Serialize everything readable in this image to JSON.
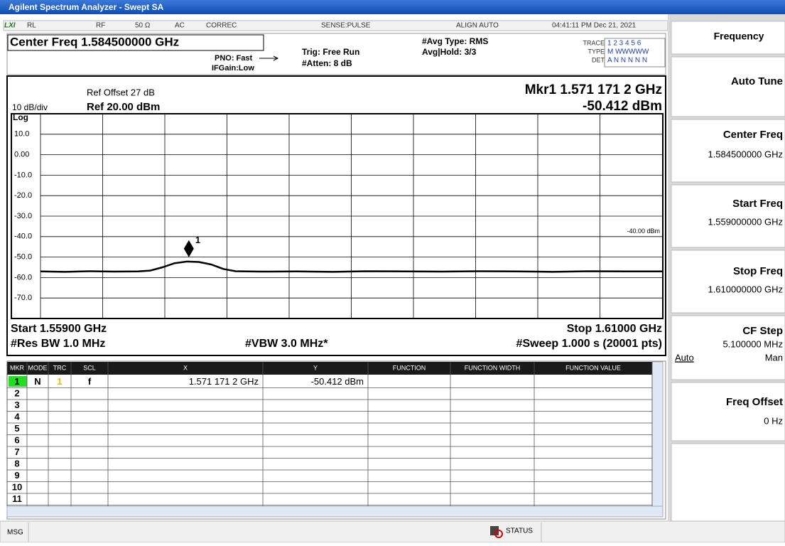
{
  "title_bar": "Agilent Spectrum Analyzer - Swept SA",
  "status_row": {
    "lxi": "LXI",
    "rl": "RL",
    "rf": "RF",
    "impedance": "50 Ω",
    "coupling": "AC",
    "correc": "CORREC",
    "sense": "SENSE:PULSE",
    "align": "ALIGN AUTO",
    "time": "04:41:11 PM Dec 21, 2021"
  },
  "header": {
    "center_freq": "Center Freq 1.584500000 GHz",
    "pno": "PNO: Fast",
    "ifgain": "IFGain:Low",
    "trig": "Trig: Free Run",
    "atten": "#Atten: 8 dB",
    "avg_type": "#Avg Type: RMS",
    "avg_hold": "Avg|Hold: 3/3",
    "trace_label": "TRACE",
    "trace_value": "1 2 3 4 5 6",
    "type_label": "TYPE",
    "type_value": "M WWWWW",
    "det_label": "DET",
    "det_value": "A N N N N N"
  },
  "display": {
    "ref_offset": "Ref Offset 27 dB",
    "scale": "10 dB/div",
    "ref_level": "Ref 20.00 dBm",
    "log": "Log",
    "marker_freq": "Mkr1 1.571 171 2 GHz",
    "marker_level": "-50.412 dBm",
    "start": "Start 1.55900 GHz",
    "stop": "Stop 1.61000 GHz",
    "rbw": "#Res BW 1.0 MHz",
    "vbw": "#VBW 3.0 MHz*",
    "sweep": "#Sweep  1.000 s (20001 pts)"
  },
  "chart_data": {
    "type": "line",
    "color": "#000000",
    "xlim": [
      1.559,
      1.61
    ],
    "ylim": [
      -80,
      20
    ],
    "yticks": [
      {
        "value": 10,
        "label": "10.0"
      },
      {
        "value": 0,
        "label": "0.00"
      },
      {
        "value": -10,
        "label": "-10.0"
      },
      {
        "value": -20,
        "label": "-20.0"
      },
      {
        "value": -30,
        "label": "-30.0"
      },
      {
        "value": -40,
        "label": "-40.0"
      },
      {
        "value": -50,
        "label": "-50.0"
      },
      {
        "value": -60,
        "label": "-60.0"
      },
      {
        "value": -70,
        "label": "-70.0"
      }
    ],
    "x": [
      1.559,
      1.561,
      1.563,
      1.565,
      1.567,
      1.568,
      1.569,
      1.57,
      1.571,
      1.572,
      1.573,
      1.574,
      1.575,
      1.577,
      1.58,
      1.583,
      1.586,
      1.589,
      1.592,
      1.595,
      1.598,
      1.601,
      1.604,
      1.607,
      1.61
    ],
    "values": [
      -57,
      -57.2,
      -56.9,
      -57.1,
      -57,
      -56.6,
      -55,
      -53,
      -52.2,
      -52.4,
      -53.6,
      -55.8,
      -56.9,
      -57.1,
      -57,
      -57.2,
      -56.9,
      -57,
      -57.1,
      -56.9,
      -57,
      -57.2,
      -56.9,
      -57,
      -57
    ],
    "display_line": {
      "value": -40,
      "label": "-40.00 dBm"
    },
    "marker": {
      "x": 1.5711712,
      "value": -50.412,
      "label": "1"
    }
  },
  "table": {
    "headers": [
      "MKR",
      "MODE",
      "TRC",
      "SCL",
      "X",
      "Y",
      "FUNCTION",
      "FUNCTION WIDTH",
      "FUNCTION VALUE"
    ],
    "rows": [
      [
        "1",
        "N",
        "1",
        "f",
        "1.571 171 2 GHz",
        "-50.412 dBm"
      ],
      [
        "2"
      ],
      [
        "3"
      ],
      [
        "4"
      ],
      [
        "5"
      ],
      [
        "6"
      ],
      [
        "7"
      ],
      [
        "8"
      ],
      [
        "9"
      ],
      [
        "10"
      ],
      [
        "11"
      ]
    ]
  },
  "softkeys": {
    "menu": "Frequency",
    "auto_tune": "Auto Tune",
    "center_label": "Center Freq",
    "center_value": "1.584500000 GHz",
    "start_label": "Start Freq",
    "start_value": "1.559000000 GHz",
    "stop_label": "Stop Freq",
    "stop_value": "1.610000000 GHz",
    "cfstep_label": "CF Step",
    "cfstep_value": "5.100000 MHz",
    "cfstep_auto": "Auto",
    "cfstep_man": "Man",
    "offset_label": "Freq Offset",
    "offset_value": "0 Hz"
  },
  "status_bar": {
    "msg": "MSG",
    "status": "STATUS"
  }
}
